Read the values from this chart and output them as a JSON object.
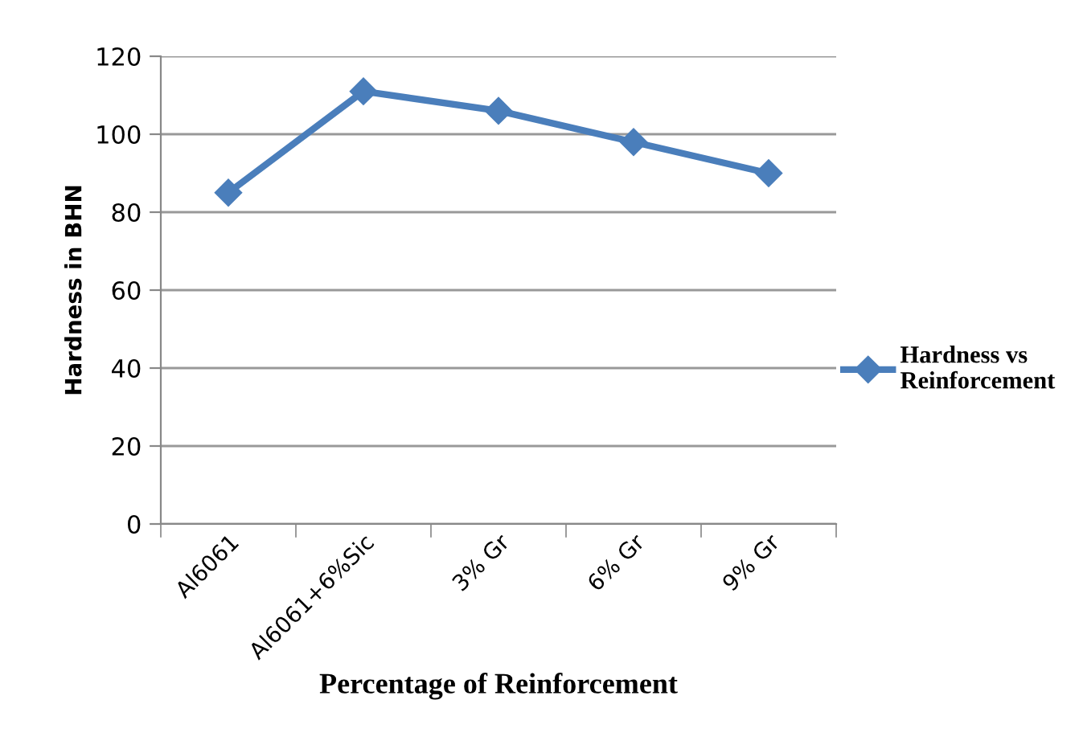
{
  "chart_data": {
    "type": "line",
    "xlabel": "Percentage of Reinforcement",
    "ylabel": "Hardness in BHN",
    "categories": [
      "Al6061",
      "Al6061+6%Sic",
      "3% Gr",
      "6% Gr",
      "9% Gr"
    ],
    "series": [
      {
        "name": "Hardness vs\nReinforcement",
        "color": "#4a7ebb",
        "values": [
          85,
          111,
          106,
          98,
          90
        ]
      }
    ],
    "ylim": [
      0,
      120
    ],
    "yticks": [
      0,
      20,
      40,
      60,
      80,
      100,
      120
    ],
    "grid": "y",
    "legend": "right",
    "marker": "diamond",
    "line_style": "solid"
  }
}
